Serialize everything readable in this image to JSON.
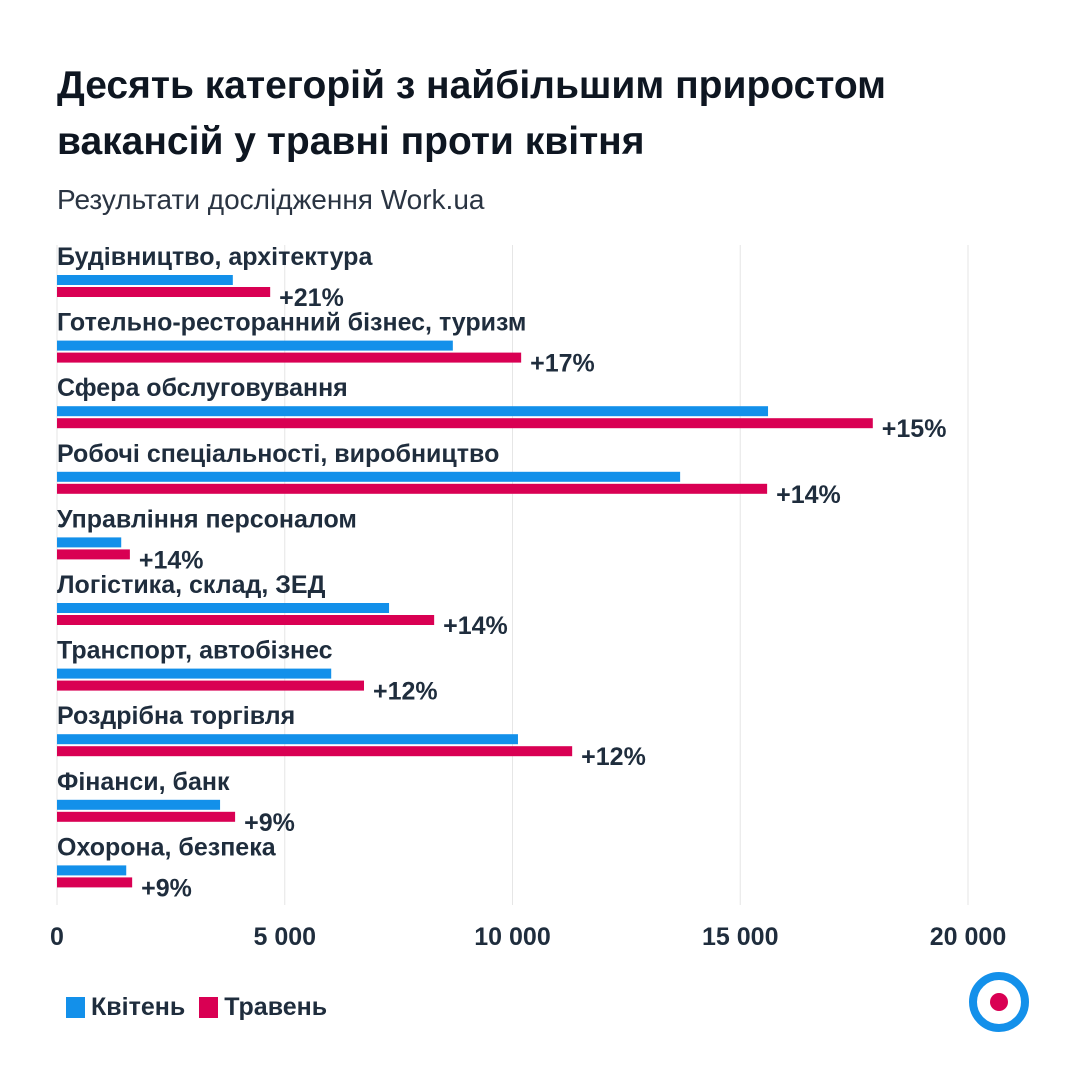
{
  "title": "Десять категорій з найбільшим приростом вакансій у травні проти квітня",
  "subtitle": "Результати дослідження Work.ua",
  "colors": {
    "april": "#1390ea",
    "may": "#d90053",
    "grid": "#e6e6e6",
    "text": "#1f2d3d"
  },
  "logo": "work-ua-target-logo",
  "chart_data": {
    "type": "bar",
    "orientation": "horizontal",
    "categories": [
      "Будівництво, архітектура",
      "Готельно-ресторанний бізнес, туризм",
      "Сфера обслуговування",
      "Робочі спеціальності, виробництво",
      "Управління персоналом",
      "Логістика, склад, ЗЕД",
      "Транспорт, автобізнес",
      "Роздрібна торгівля",
      "Фінанси, банк",
      "Охорона, безпека"
    ],
    "series": [
      {
        "name": "Квітень",
        "values": [
          3860,
          8690,
          15610,
          13680,
          1410,
          7290,
          6020,
          10120,
          3580,
          1520
        ]
      },
      {
        "name": "Травень",
        "values": [
          4680,
          10190,
          17910,
          15590,
          1600,
          8280,
          6740,
          11310,
          3910,
          1650
        ]
      }
    ],
    "data_labels": [
      "+21%",
      "+17%",
      "+15%",
      "+14%",
      "+14%",
      "+14%",
      "+12%",
      "+12%",
      "+9%",
      "+9%"
    ],
    "xlim": [
      0,
      20000
    ],
    "xticks": [
      0,
      5000,
      10000,
      15000,
      20000
    ],
    "xtick_labels": [
      "0",
      "5 000",
      "10 000",
      "15 000",
      "20 000"
    ],
    "grid": true,
    "legend": "bottom-left"
  }
}
